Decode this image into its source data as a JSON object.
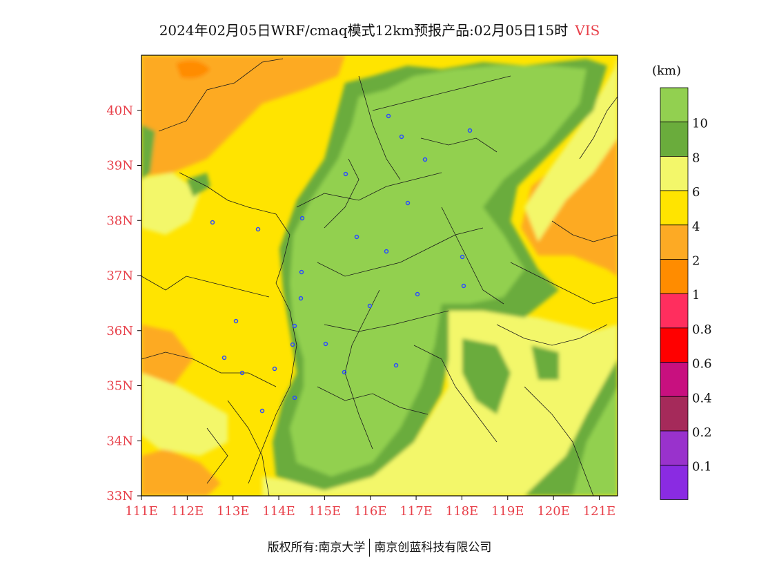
{
  "title": {
    "main": "2024年02月05日WRF/cmaq模式12km预报产品:02月05日15时",
    "variable": "VIS"
  },
  "map": {
    "lat_labels": [
      "40N",
      "39N",
      "38N",
      "37N",
      "36N",
      "35N",
      "34N",
      "33N"
    ],
    "lon_labels": [
      "111E",
      "112E",
      "113E",
      "114E",
      "115E",
      "116E",
      "117E",
      "118E",
      "119E",
      "120E",
      "121E"
    ],
    "lat_range": [
      33,
      41
    ],
    "lon_range": [
      111,
      121.4
    ],
    "label_color": "#e8404a"
  },
  "colorbar": {
    "unit": "(km)",
    "levels": [
      {
        "label": "",
        "color": "#92d050"
      },
      {
        "label": "10",
        "color": "#6aac3c"
      },
      {
        "label": "8",
        "color": "#f3f76a"
      },
      {
        "label": "6",
        "color": "#ffe400"
      },
      {
        "label": "4",
        "color": "#fdaa24"
      },
      {
        "label": "2",
        "color": "#ff8c00"
      },
      {
        "label": "1",
        "color": "#ff2e5e"
      },
      {
        "label": "0.8",
        "color": "#ff0000"
      },
      {
        "label": "0.6",
        "color": "#c8107f"
      },
      {
        "label": "0.4",
        "color": "#a52a5a"
      },
      {
        "label": "0.2",
        "color": "#9932cc"
      },
      {
        "label": "0.1",
        "color": "#8a2be2"
      }
    ]
  },
  "footer": {
    "copyright": "版权所有:南京大学",
    "company": "南京创蓝科技有限公司"
  }
}
